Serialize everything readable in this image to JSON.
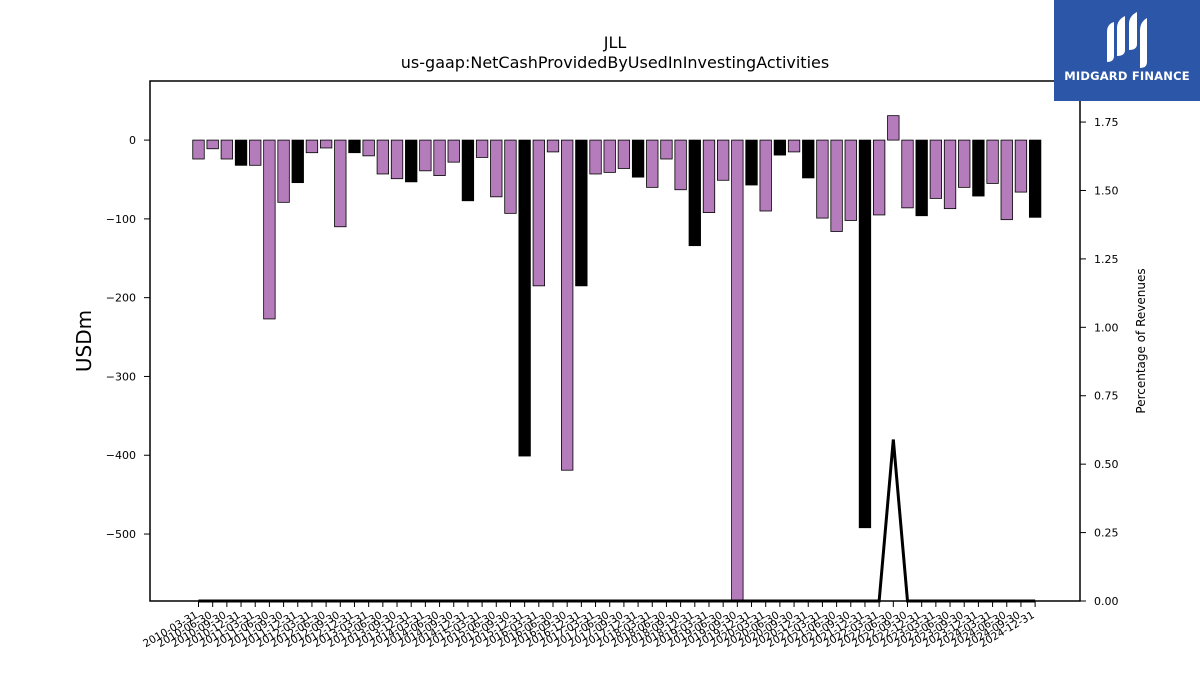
{
  "header": {
    "company": "JLL",
    "metric": "us-gaap:NetCashProvidedByUsedInInvestingActivities"
  },
  "logo": {
    "text": "MIDGARD FINANCE",
    "icon": "midgard-logo-icon"
  },
  "colors": {
    "quarter": "#b57cbb",
    "annual": "#000000",
    "logo_bg": "#2c56a8"
  },
  "chart_data": {
    "type": "bar",
    "ylabel": "USDm",
    "y2label": "Percentage of Revenues",
    "ylim": [
      -585,
      75
    ],
    "y2lim": [
      0,
      1.9
    ],
    "yticks": [
      0,
      -100,
      -200,
      -300,
      -400,
      -500
    ],
    "y2ticks": [
      "0.00",
      "0.25",
      "0.50",
      "0.75",
      "1.00",
      "1.25",
      "1.50",
      "1.75"
    ],
    "grid": false,
    "categories": [
      "2010-03-31",
      "2010-06-30",
      "2010-09-30",
      "2010-12-31",
      "2011-03-31",
      "2011-06-30",
      "2011-09-30",
      "2011-12-31",
      "2012-03-31",
      "2012-06-30",
      "2012-09-30",
      "2012-12-31",
      "2013-03-31",
      "2013-06-30",
      "2013-09-30",
      "2013-12-31",
      "2014-03-31",
      "2014-06-30",
      "2014-09-30",
      "2014-12-31",
      "2015-03-31",
      "2015-06-30",
      "2015-09-30",
      "2015-12-31",
      "2016-03-31",
      "2016-06-30",
      "2016-09-30",
      "2016-12-31",
      "2017-03-31",
      "2017-06-30",
      "2017-09-30",
      "2017-12-31",
      "2018-03-31",
      "2018-06-30",
      "2018-09-30",
      "2018-12-31",
      "2019-03-31",
      "2019-06-30",
      "2019-09-30",
      "2019-12-31",
      "2020-03-31",
      "2020-06-30",
      "2020-09-30",
      "2020-12-31",
      "2021-03-31",
      "2021-06-30",
      "2021-09-30",
      "2021-12-31",
      "2022-03-31",
      "2022-06-30",
      "2022-09-30",
      "2022-12-31",
      "2023-03-31",
      "2023-06-30",
      "2023-09-30",
      "2023-12-31",
      "2024-03-31",
      "2024-06-30",
      "2024-09-30",
      "2024-12-31"
    ],
    "values": [
      -24,
      -11,
      -24,
      -32,
      -32,
      -227,
      -79,
      -54,
      -16,
      -10,
      -110,
      -16,
      -20,
      -43,
      -49,
      -53,
      -39,
      -45,
      -28,
      -77,
      -22,
      -72,
      -93,
      -401,
      -185,
      -15,
      -419,
      -185,
      -43,
      -41,
      -36,
      -47,
      -60,
      -24,
      -63,
      -134,
      -92,
      -51,
      -590,
      -57,
      -90,
      -19,
      -15,
      -48,
      -99,
      -116,
      -102,
      -492,
      -95,
      31,
      -86,
      -96,
      -74,
      -87,
      -60,
      -71,
      -55,
      -101,
      -66,
      -98
    ],
    "annual": [
      false,
      false,
      false,
      true,
      false,
      false,
      false,
      true,
      false,
      false,
      false,
      true,
      false,
      false,
      false,
      true,
      false,
      false,
      false,
      true,
      false,
      false,
      false,
      true,
      false,
      false,
      false,
      true,
      false,
      false,
      false,
      true,
      false,
      false,
      false,
      true,
      false,
      false,
      false,
      true,
      false,
      true,
      false,
      true,
      false,
      false,
      false,
      true,
      false,
      false,
      false,
      true,
      false,
      false,
      false,
      true,
      false,
      false,
      false,
      true
    ],
    "ratio_series": [
      0,
      0,
      0,
      0,
      0,
      0,
      0,
      0,
      0,
      0,
      0,
      0,
      0,
      0,
      0,
      0,
      0,
      0,
      0,
      0,
      0,
      0,
      0,
      0,
      0,
      0,
      0,
      0,
      0,
      0,
      0,
      0,
      0,
      0,
      0,
      0,
      0,
      0,
      0,
      0,
      0,
      0,
      0,
      0,
      0,
      0,
      0,
      0,
      0,
      0.59,
      0,
      0,
      0,
      0,
      0,
      0,
      0,
      0,
      0,
      0
    ]
  }
}
